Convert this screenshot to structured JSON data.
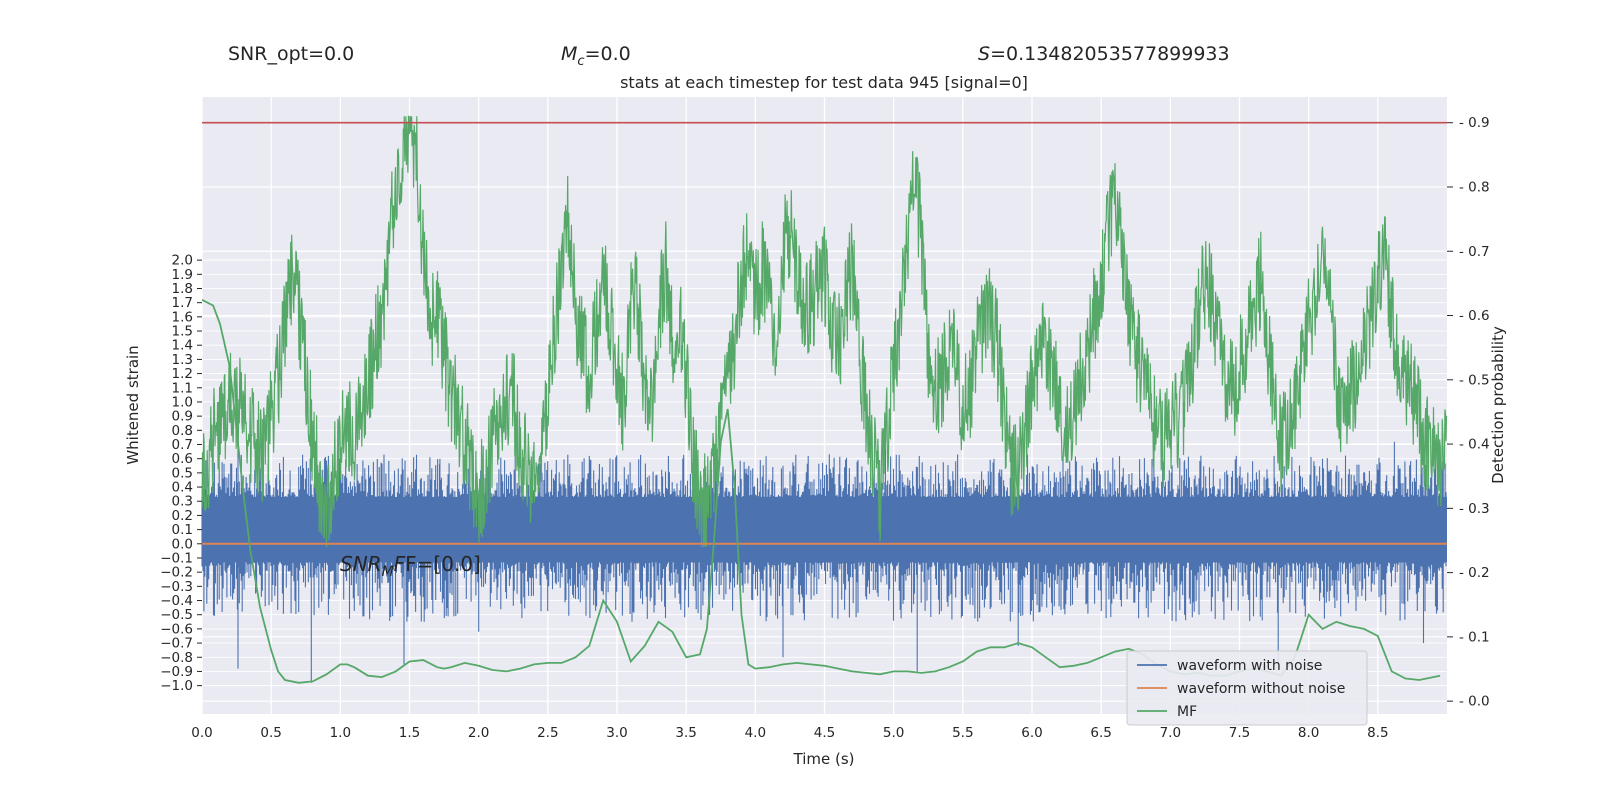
{
  "header": {
    "snr_opt": "SNR_opt=0.0",
    "mc_symbol": "M",
    "mc_sub": "c",
    "mc_value": "=0.0",
    "s_symbol": "S",
    "s_value": "=0.13482053577899933"
  },
  "chart_data": {
    "type": "line",
    "title": "stats at each timestep for test data 945 [signal=0]",
    "xlabel": "Time (s)",
    "ylabel_left": "Whitened strain",
    "ylabel_right": "Detection probability",
    "annotation": {
      "base": "SNR",
      "sub": "M",
      "rest": "F=[0.0]"
    },
    "xlim": [
      0.0,
      9.0
    ],
    "ylim_left": [
      -1.2,
      3.15
    ],
    "ylim_right": [
      -0.02,
      0.94
    ],
    "x_ticks": [
      "0.0",
      "0.5",
      "1.0",
      "1.5",
      "2.0",
      "2.5",
      "3.0",
      "3.5",
      "4.0",
      "4.5",
      "5.0",
      "5.5",
      "6.0",
      "6.5",
      "7.0",
      "7.5",
      "8.0",
      "8.5"
    ],
    "y_left_ticks": [
      "2.0",
      "1.9",
      "1.8",
      "1.7",
      "1.6",
      "1.5",
      "1.4",
      "1.3",
      "1.2",
      "1.1",
      "1.0",
      "0.9",
      "0.8",
      "0.7",
      "0.6",
      "0.5",
      "0.4",
      "0.3",
      "0.2",
      "0.1",
      "0.0",
      "-0.1",
      "-0.2",
      "-0.3",
      "-0.4",
      "-0.5",
      "-0.6",
      "-0.7",
      "-0.8",
      "-0.9",
      "-1.0"
    ],
    "y_right_ticks": [
      "0.9",
      "0.8",
      "0.7",
      "0.6",
      "0.5",
      "0.4",
      "0.3",
      "0.2",
      "0.1",
      "0.0"
    ],
    "threshold": {
      "value": 0.9,
      "color": "#c44e52"
    },
    "grid": true,
    "legend_placement": "lower-right",
    "series": [
      {
        "name": "waveform with noise",
        "color": "#4c72b0",
        "axis": "left",
        "band_core": [
          -0.13,
          0.33
        ],
        "peaks_up": [
          [
            0.26,
            0.72
          ],
          [
            0.82,
            0.68
          ],
          [
            1.72,
            0.6
          ],
          [
            2.8,
            0.62
          ],
          [
            4.2,
            0.55
          ],
          [
            4.94,
            0.72
          ],
          [
            5.9,
            0.5
          ],
          [
            6.55,
            0.5
          ],
          [
            7.1,
            0.58
          ],
          [
            7.75,
            0.62
          ],
          [
            8.62,
            0.72
          ]
        ],
        "peaks_down": [
          [
            0.26,
            -0.88
          ],
          [
            0.79,
            -0.98
          ],
          [
            1.46,
            -0.85
          ],
          [
            2.0,
            -0.62
          ],
          [
            4.2,
            -0.8
          ],
          [
            5.17,
            -0.9
          ],
          [
            5.9,
            -0.72
          ],
          [
            7.78,
            -0.85
          ],
          [
            8.83,
            -0.7
          ]
        ]
      },
      {
        "name": "waveform without noise",
        "color": "#dd8452",
        "axis": "left",
        "values": [
          0.0
        ]
      },
      {
        "name": "MF",
        "color": "#55a868",
        "axis": "left",
        "x": [
          0.0,
          0.08,
          0.13,
          0.2,
          0.25,
          0.3,
          0.35,
          0.42,
          0.5,
          0.55,
          0.6,
          0.7,
          0.8,
          0.9,
          1.0,
          1.05,
          1.1,
          1.2,
          1.3,
          1.4,
          1.5,
          1.6,
          1.7,
          1.75,
          1.8,
          1.9,
          2.0,
          2.1,
          2.2,
          2.3,
          2.4,
          2.5,
          2.6,
          2.7,
          2.8,
          2.9,
          3.0,
          3.1,
          3.2,
          3.3,
          3.4,
          3.5,
          3.6,
          3.65,
          3.7,
          3.75,
          3.8,
          3.85,
          3.9,
          3.95,
          4.0,
          4.1,
          4.2,
          4.3,
          4.4,
          4.5,
          4.6,
          4.7,
          4.8,
          4.9,
          5.0,
          5.1,
          5.2,
          5.3,
          5.4,
          5.5,
          5.6,
          5.7,
          5.8,
          5.9,
          6.0,
          6.1,
          6.2,
          6.3,
          6.4,
          6.5,
          6.6,
          6.7,
          6.8,
          6.9,
          7.0,
          7.1,
          7.2,
          7.3,
          7.4,
          7.5,
          7.6,
          7.7,
          7.8,
          7.9,
          8.0,
          8.1,
          8.2,
          8.3,
          8.4,
          8.5,
          8.6,
          8.7,
          8.8,
          8.9,
          8.95
        ],
        "values": [
          1.72,
          1.68,
          1.55,
          1.25,
          0.8,
          0.35,
          -0.05,
          -0.45,
          -0.75,
          -0.9,
          -0.96,
          -0.98,
          -0.97,
          -0.92,
          -0.85,
          -0.85,
          -0.87,
          -0.93,
          -0.94,
          -0.9,
          -0.83,
          -0.82,
          -0.87,
          -0.88,
          -0.87,
          -0.84,
          -0.86,
          -0.89,
          -0.9,
          -0.88,
          -0.85,
          -0.84,
          -0.84,
          -0.8,
          -0.72,
          -0.4,
          -0.55,
          -0.83,
          -0.72,
          -0.55,
          -0.62,
          -0.8,
          -0.78,
          -0.6,
          0.0,
          0.72,
          0.95,
          0.4,
          -0.5,
          -0.85,
          -0.88,
          -0.87,
          -0.85,
          -0.84,
          -0.85,
          -0.86,
          -0.88,
          -0.9,
          -0.91,
          -0.92,
          -0.9,
          -0.9,
          -0.91,
          -0.9,
          -0.87,
          -0.83,
          -0.76,
          -0.73,
          -0.73,
          -0.7,
          -0.73,
          -0.8,
          -0.87,
          -0.86,
          -0.84,
          -0.8,
          -0.76,
          -0.74,
          -0.78,
          -0.85,
          -0.9,
          -0.92,
          -0.91,
          -0.93,
          -0.93,
          -0.9,
          -0.88,
          -0.9,
          -0.93,
          -0.8,
          -0.5,
          -0.6,
          -0.55,
          -0.58,
          -0.6,
          -0.65,
          -0.9,
          -0.95,
          -0.96,
          -0.94,
          -0.93
        ]
      },
      {
        "name": "detection probability",
        "color": "#55a868",
        "axis": "right",
        "x": [
          0.0,
          0.05,
          0.1,
          0.15,
          0.2,
          0.25,
          0.3,
          0.35,
          0.4,
          0.45,
          0.5,
          0.55,
          0.6,
          0.65,
          0.7,
          0.75,
          0.8,
          0.85,
          0.9,
          0.95,
          1.0,
          1.05,
          1.1,
          1.15,
          1.2,
          1.25,
          1.3,
          1.35,
          1.4,
          1.45,
          1.5,
          1.55,
          1.6,
          1.65,
          1.7,
          1.75,
          1.8,
          1.85,
          1.9,
          1.95,
          2.0,
          2.05,
          2.1,
          2.15,
          2.2,
          2.25,
          2.3,
          2.35,
          2.4,
          2.45,
          2.5,
          2.55,
          2.6,
          2.65,
          2.7,
          2.75,
          2.8,
          2.85,
          2.9,
          2.95,
          3.0,
          3.05,
          3.1,
          3.15,
          3.2,
          3.25,
          3.3,
          3.35,
          3.4,
          3.45,
          3.5,
          3.55,
          3.6,
          3.65,
          3.7,
          3.75,
          3.8,
          3.85,
          3.9,
          3.95,
          4.0,
          4.05,
          4.1,
          4.15,
          4.2,
          4.25,
          4.3,
          4.35,
          4.4,
          4.45,
          4.5,
          4.55,
          4.6,
          4.65,
          4.7,
          4.75,
          4.8,
          4.85,
          4.9,
          4.95,
          5.0,
          5.05,
          5.1,
          5.15,
          5.2,
          5.25,
          5.3,
          5.35,
          5.4,
          5.45,
          5.5,
          5.55,
          5.6,
          5.65,
          5.7,
          5.75,
          5.8,
          5.85,
          5.9,
          5.95,
          6.0,
          6.05,
          6.1,
          6.15,
          6.2,
          6.25,
          6.3,
          6.35,
          6.4,
          6.45,
          6.5,
          6.55,
          6.6,
          6.65,
          6.7,
          6.75,
          6.8,
          6.85,
          6.9,
          6.95,
          7.0,
          7.05,
          7.1,
          7.15,
          7.2,
          7.25,
          7.3,
          7.35,
          7.4,
          7.45,
          7.5,
          7.55,
          7.6,
          7.65,
          7.7,
          7.75,
          7.8,
          7.85,
          7.9,
          7.95,
          8.0,
          8.05,
          8.1,
          8.15,
          8.2,
          8.25,
          8.3,
          8.35,
          8.4,
          8.45,
          8.5,
          8.55,
          8.6,
          8.65,
          8.7,
          8.75,
          8.8,
          8.85,
          8.9,
          8.95,
          9.0
        ],
        "values": [
          0.34,
          0.38,
          0.42,
          0.44,
          0.47,
          0.46,
          0.48,
          0.42,
          0.4,
          0.38,
          0.44,
          0.5,
          0.58,
          0.66,
          0.6,
          0.52,
          0.4,
          0.34,
          0.3,
          0.35,
          0.4,
          0.44,
          0.42,
          0.46,
          0.5,
          0.55,
          0.6,
          0.7,
          0.82,
          0.86,
          0.91,
          0.84,
          0.7,
          0.58,
          0.6,
          0.54,
          0.48,
          0.45,
          0.4,
          0.36,
          0.32,
          0.35,
          0.4,
          0.44,
          0.46,
          0.48,
          0.4,
          0.36,
          0.34,
          0.38,
          0.47,
          0.58,
          0.66,
          0.76,
          0.6,
          0.55,
          0.5,
          0.58,
          0.65,
          0.6,
          0.5,
          0.46,
          0.62,
          0.62,
          0.5,
          0.44,
          0.58,
          0.68,
          0.56,
          0.6,
          0.5,
          0.38,
          0.3,
          0.32,
          0.36,
          0.42,
          0.5,
          0.56,
          0.66,
          0.7,
          0.62,
          0.68,
          0.62,
          0.58,
          0.7,
          0.73,
          0.66,
          0.6,
          0.62,
          0.64,
          0.66,
          0.58,
          0.55,
          0.62,
          0.68,
          0.55,
          0.45,
          0.38,
          0.32,
          0.42,
          0.52,
          0.6,
          0.7,
          0.86,
          0.7,
          0.55,
          0.48,
          0.5,
          0.56,
          0.54,
          0.45,
          0.48,
          0.56,
          0.58,
          0.6,
          0.55,
          0.45,
          0.35,
          0.36,
          0.42,
          0.5,
          0.54,
          0.56,
          0.5,
          0.46,
          0.42,
          0.46,
          0.5,
          0.54,
          0.6,
          0.66,
          0.72,
          0.8,
          0.68,
          0.6,
          0.55,
          0.5,
          0.46,
          0.42,
          0.4,
          0.42,
          0.44,
          0.46,
          0.52,
          0.6,
          0.66,
          0.62,
          0.55,
          0.5,
          0.48,
          0.52,
          0.56,
          0.6,
          0.66,
          0.55,
          0.48,
          0.4,
          0.42,
          0.46,
          0.52,
          0.58,
          0.62,
          0.66,
          0.68,
          0.5,
          0.44,
          0.48,
          0.5,
          0.55,
          0.6,
          0.66,
          0.7,
          0.6,
          0.54,
          0.5,
          0.48,
          0.44,
          0.4,
          0.38,
          0.36,
          0.4
        ]
      }
    ]
  }
}
